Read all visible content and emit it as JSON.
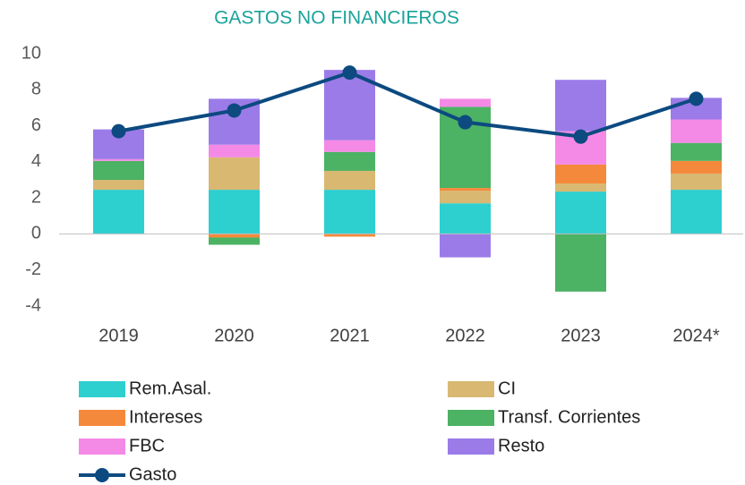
{
  "chart_data": {
    "type": "stacked_bar_line",
    "title": "GASTOS NO FINANCIEROS",
    "categories": [
      "2019",
      "2020",
      "2021",
      "2022",
      "2023",
      "2024*"
    ],
    "ylim": [
      -4,
      10
    ],
    "yticks": [
      -4,
      -2,
      0,
      2,
      4,
      6,
      8,
      10
    ],
    "series": [
      {
        "name": "Rem.Asal.",
        "color": "#2ecfcf",
        "values": [
          2.45,
          2.45,
          2.45,
          1.7,
          2.35,
          2.45
        ]
      },
      {
        "name": "CI",
        "color": "#d9b872",
        "values": [
          0.55,
          1.8,
          1.05,
          0.7,
          0.45,
          0.9
        ]
      },
      {
        "name": "Intereses",
        "color": "#f5893b",
        "values": [
          0,
          -0.2,
          -0.15,
          0.15,
          1.05,
          0.7
        ]
      },
      {
        "name": "Transf. Corrientes",
        "color": "#4cb264",
        "values": [
          1.05,
          -0.4,
          1.05,
          4.5,
          -3.2,
          1.0
        ]
      },
      {
        "name": "FBC",
        "color": "#f48ae6",
        "values": [
          0.1,
          0.7,
          0.65,
          0.45,
          1.85,
          1.3
        ]
      },
      {
        "name": "Resto",
        "color": "#9b7be8",
        "values": [
          1.65,
          2.55,
          3.9,
          -1.3,
          2.85,
          1.2
        ]
      },
      {
        "name": "Gasto",
        "color": "#0c4a80",
        "type": "line",
        "values": [
          5.7,
          6.85,
          8.95,
          6.2,
          5.4,
          7.5
        ]
      }
    ]
  }
}
